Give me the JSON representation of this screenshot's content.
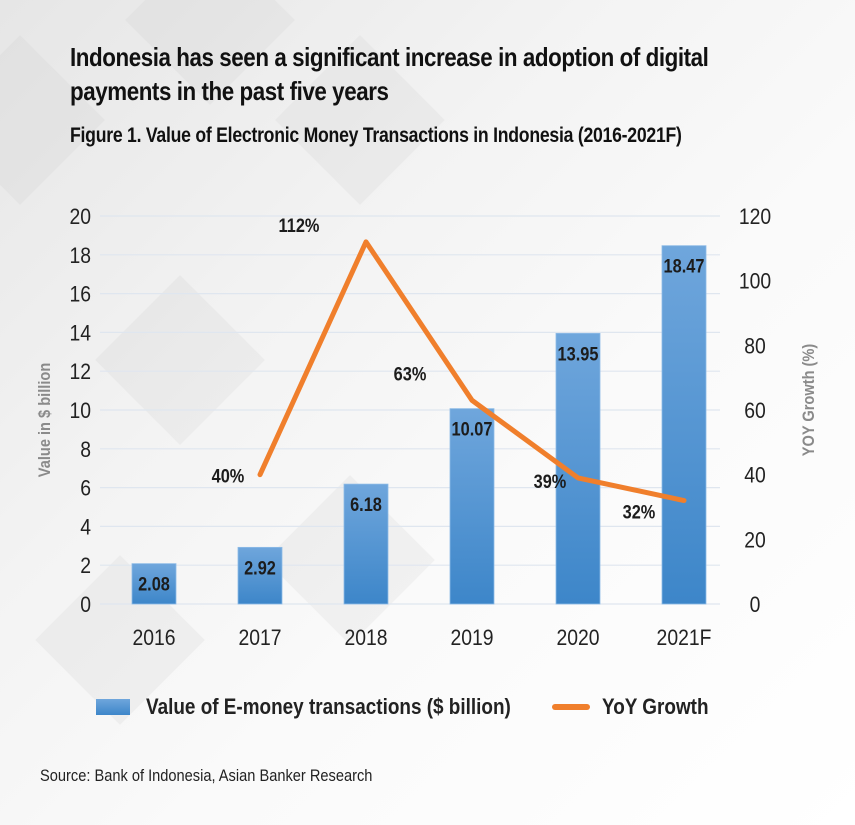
{
  "headline": "Indonesia has seen a significant increase in adoption of digital payments in the past five years",
  "source": "Source: Bank of Indonesia, Asian Banker Research",
  "colors": {
    "bar_top": "#6fa6dc",
    "bar_bottom": "#3d86c9",
    "line": "#f07f2c",
    "grid": "#dfe6ef",
    "text": "#222222",
    "axis_title": "#8a8a8a"
  },
  "chart_data": {
    "type": "bar+line",
    "title": "Figure 1. Value of Electronic Money Transactions in Indonesia (2016-2021F)",
    "categories": [
      "2016",
      "2017",
      "2018",
      "2019",
      "2020",
      "2021F"
    ],
    "series": [
      {
        "name": "Value of E-money transactions ($ billion)",
        "type": "bar",
        "axis": "left",
        "values": [
          2.08,
          2.92,
          6.18,
          10.07,
          13.95,
          18.47
        ],
        "labels": [
          "2.08",
          "2.92",
          "6.18",
          "10.07",
          "13.95",
          "18.47"
        ]
      },
      {
        "name": "YoY Growth",
        "type": "line",
        "axis": "right",
        "x": [
          "2017",
          "2018",
          "2019",
          "2020",
          "2021F"
        ],
        "values": [
          40,
          112,
          63,
          39,
          32
        ],
        "labels": [
          "40%",
          "112%",
          "63%",
          "39%",
          "32%"
        ]
      }
    ],
    "y_left": {
      "label": "Value in $ billion",
      "range": [
        0,
        20
      ],
      "ticks": [
        "0",
        "2",
        "4",
        "6",
        "8",
        "10",
        "12",
        "14",
        "16",
        "18",
        "20"
      ]
    },
    "y_right": {
      "label": "YOY Growth (%)",
      "range": [
        0,
        120
      ],
      "ticks": [
        "0",
        "20",
        "40",
        "60",
        "80",
        "100",
        "120"
      ]
    },
    "grid": true,
    "legend_position": "bottom"
  }
}
